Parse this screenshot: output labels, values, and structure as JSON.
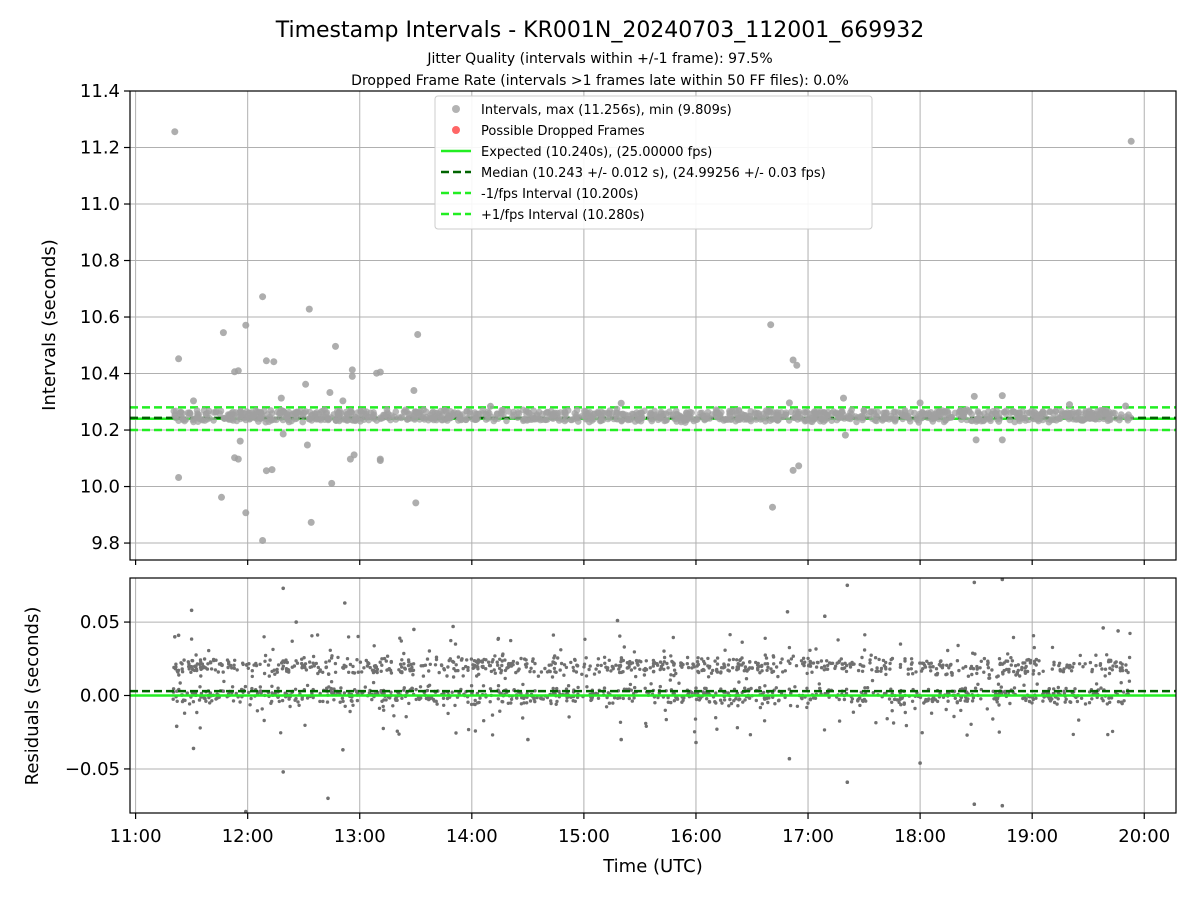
{
  "chart_data": [
    {
      "type": "scatter",
      "title": "Timestamp Intervals - KR001N_20240703_112001_669932",
      "subtitle_lines": [
        "Jitter Quality (intervals within +/-1 frame): 97.5%",
        "Dropped Frame Rate (intervals >1 frames late within 50 FF files): 0.0%"
      ],
      "ylabel": "Intervals (seconds)",
      "xlim": [
        "10:57",
        "20:17"
      ],
      "ylim": [
        9.74,
        11.4
      ],
      "yticks": [
        {
          "value": 9.8,
          "label": "9.8"
        },
        {
          "value": 10.0,
          "label": "10.0"
        },
        {
          "value": 10.2,
          "label": "10.2"
        },
        {
          "value": 10.4,
          "label": "10.4"
        },
        {
          "value": 10.6,
          "label": "10.6"
        },
        {
          "value": 10.8,
          "label": "10.8"
        },
        {
          "value": 11.0,
          "label": "11.0"
        },
        {
          "value": 11.2,
          "label": "11.2"
        },
        {
          "value": 11.4,
          "label": "11.4"
        }
      ],
      "grid": true,
      "legend_position": "upper center",
      "colors": {
        "intervals": "#a0a0a0",
        "dropped": "#ff4040",
        "expected": "#22ee22",
        "median": "#006400",
        "bounds": "#22ee22"
      },
      "series": [
        {
          "name": "Intervals, max (11.256s), min (9.809s)",
          "kind": "points",
          "color": "#a0a0a0",
          "data": [
            [
              "11:21",
              11.256
            ],
            [
              "19:53",
              11.222
            ],
            [
              "12:08",
              10.672
            ],
            [
              "12:33",
              10.628
            ],
            [
              "11:59",
              10.571
            ],
            [
              "11:47",
              10.545
            ],
            [
              "13:31",
              10.538
            ],
            [
              "12:47",
              10.496
            ],
            [
              "11:23",
              10.452
            ],
            [
              "12:10",
              10.445
            ],
            [
              "12:14",
              10.442
            ],
            [
              "11:53",
              10.406
            ],
            [
              "11:55",
              10.41
            ],
            [
              "13:09",
              10.401
            ],
            [
              "12:56",
              10.413
            ],
            [
              "13:11",
              10.405
            ],
            [
              "12:31",
              10.362
            ],
            [
              "12:56",
              10.39
            ],
            [
              "13:29",
              10.34
            ],
            [
              "12:44",
              10.333
            ],
            [
              "12:18",
              10.313
            ],
            [
              "12:51",
              10.303
            ],
            [
              "11:31",
              10.303
            ],
            [
              "18:29",
              10.319
            ],
            [
              "18:44",
              10.322
            ],
            [
              "17:19",
              10.313
            ],
            [
              "16:40",
              10.573
            ],
            [
              "16:52",
              10.448
            ],
            [
              "16:54",
              10.429
            ],
            [
              "16:52",
              10.057
            ],
            [
              "16:55",
              10.073
            ],
            [
              "16:41",
              9.927
            ],
            [
              "11:56",
              10.161
            ],
            [
              "12:19",
              10.186
            ],
            [
              "12:32",
              10.147
            ],
            [
              "12:57",
              10.112
            ],
            [
              "12:55",
              10.097
            ],
            [
              "13:11",
              10.092
            ],
            [
              "13:11",
              10.097
            ],
            [
              "11:53",
              10.102
            ],
            [
              "11:55",
              10.097
            ],
            [
              "12:10",
              10.056
            ],
            [
              "12:13",
              10.06
            ],
            [
              "11:23",
              10.032
            ],
            [
              "12:45",
              10.011
            ],
            [
              "11:46",
              9.962
            ],
            [
              "13:30",
              9.942
            ],
            [
              "11:59",
              9.907
            ],
            [
              "12:34",
              9.873
            ],
            [
              "12:08",
              9.809
            ],
            [
              "18:30",
              10.165
            ],
            [
              "18:44",
              10.165
            ],
            [
              "17:20",
              10.182
            ],
            [
              "15:20",
              10.295
            ],
            [
              "16:50",
              10.296
            ],
            [
              "18:00",
              10.296
            ],
            [
              "19:20",
              10.29
            ],
            [
              "14:10",
              10.284
            ],
            [
              "19:50",
              10.285
            ]
          ]
        },
        {
          "name": "Possible Dropped Frames",
          "kind": "points",
          "color": "#ff4040",
          "data": []
        },
        {
          "name": "Expected (10.240s), (25.00000 fps)",
          "kind": "hline",
          "y": 10.24,
          "color": "#22ee22",
          "style": "solid"
        },
        {
          "name": "Median (10.243 +/- 0.012 s), (24.99256 +/- 0.03 fps)",
          "kind": "hline",
          "y": 10.243,
          "color": "#006400",
          "style": "dashed"
        },
        {
          "name": "-1/fps Interval (10.200s)",
          "kind": "hline",
          "y": 10.2,
          "color": "#22ee22",
          "style": "dashed"
        },
        {
          "name": "+1/fps Interval (10.280s)",
          "kind": "hline",
          "y": 10.28,
          "color": "#22ee22",
          "style": "dashed"
        }
      ],
      "dense_band": {
        "t_start": "11:20",
        "t_end": "19:53",
        "y_clusters": [
          10.24,
          10.26
        ]
      }
    },
    {
      "type": "scatter",
      "xlabel": "Time (UTC)",
      "ylabel": "Residuals (seconds)",
      "xlim": [
        "10:57",
        "20:17"
      ],
      "ylim": [
        -0.08,
        0.08
      ],
      "xticks": [
        {
          "value": "11:00",
          "label": "11:00"
        },
        {
          "value": "12:00",
          "label": "12:00"
        },
        {
          "value": "13:00",
          "label": "13:00"
        },
        {
          "value": "14:00",
          "label": "14:00"
        },
        {
          "value": "15:00",
          "label": "15:00"
        },
        {
          "value": "16:00",
          "label": "16:00"
        },
        {
          "value": "17:00",
          "label": "17:00"
        },
        {
          "value": "18:00",
          "label": "18:00"
        },
        {
          "value": "19:00",
          "label": "19:00"
        },
        {
          "value": "20:00",
          "label": "20:00"
        }
      ],
      "yticks": [
        {
          "value": -0.05,
          "label": "−0.05"
        },
        {
          "value": 0.0,
          "label": "0.00"
        },
        {
          "value": 0.05,
          "label": "0.05"
        }
      ],
      "grid": true,
      "colors": {
        "residuals": "#707070",
        "zero": "#22ee22",
        "median": "#006400"
      },
      "reference_lines": [
        {
          "y": 0.0,
          "color": "#22ee22",
          "style": "solid"
        },
        {
          "y": 0.003,
          "color": "#006400",
          "style": "dashed"
        }
      ],
      "residual_points": [
        [
          "11:21",
          0.04
        ],
        [
          "11:23",
          0.041
        ],
        [
          "11:22",
          -0.021
        ],
        [
          "11:30",
          0.058
        ],
        [
          "11:31",
          -0.036
        ],
        [
          "12:19",
          0.073
        ],
        [
          "12:26",
          0.05
        ],
        [
          "12:52",
          0.063
        ],
        [
          "13:29",
          0.045
        ],
        [
          "13:50",
          0.047
        ],
        [
          "15:18",
          0.051
        ],
        [
          "16:49",
          0.057
        ],
        [
          "17:09",
          0.054
        ],
        [
          "17:21",
          0.075
        ],
        [
          "18:29",
          0.077
        ],
        [
          "18:44",
          0.079
        ],
        [
          "19:38",
          0.046
        ],
        [
          "19:46",
          0.044
        ],
        [
          "11:59",
          -0.079
        ],
        [
          "12:19",
          -0.052
        ],
        [
          "12:43",
          -0.07
        ],
        [
          "12:51",
          -0.037
        ],
        [
          "17:21",
          -0.059
        ],
        [
          "18:29",
          -0.074
        ],
        [
          "18:44",
          -0.075
        ],
        [
          "18:00",
          -0.046
        ],
        [
          "16:50",
          -0.043
        ],
        [
          "14:30",
          -0.03
        ],
        [
          "15:20",
          -0.03
        ],
        [
          "16:00",
          -0.032
        ]
      ],
      "dense_band": {
        "t_start": "11:20",
        "t_end": "19:53",
        "y_clusters": [
          0.0,
          0.02
        ]
      }
    }
  ]
}
